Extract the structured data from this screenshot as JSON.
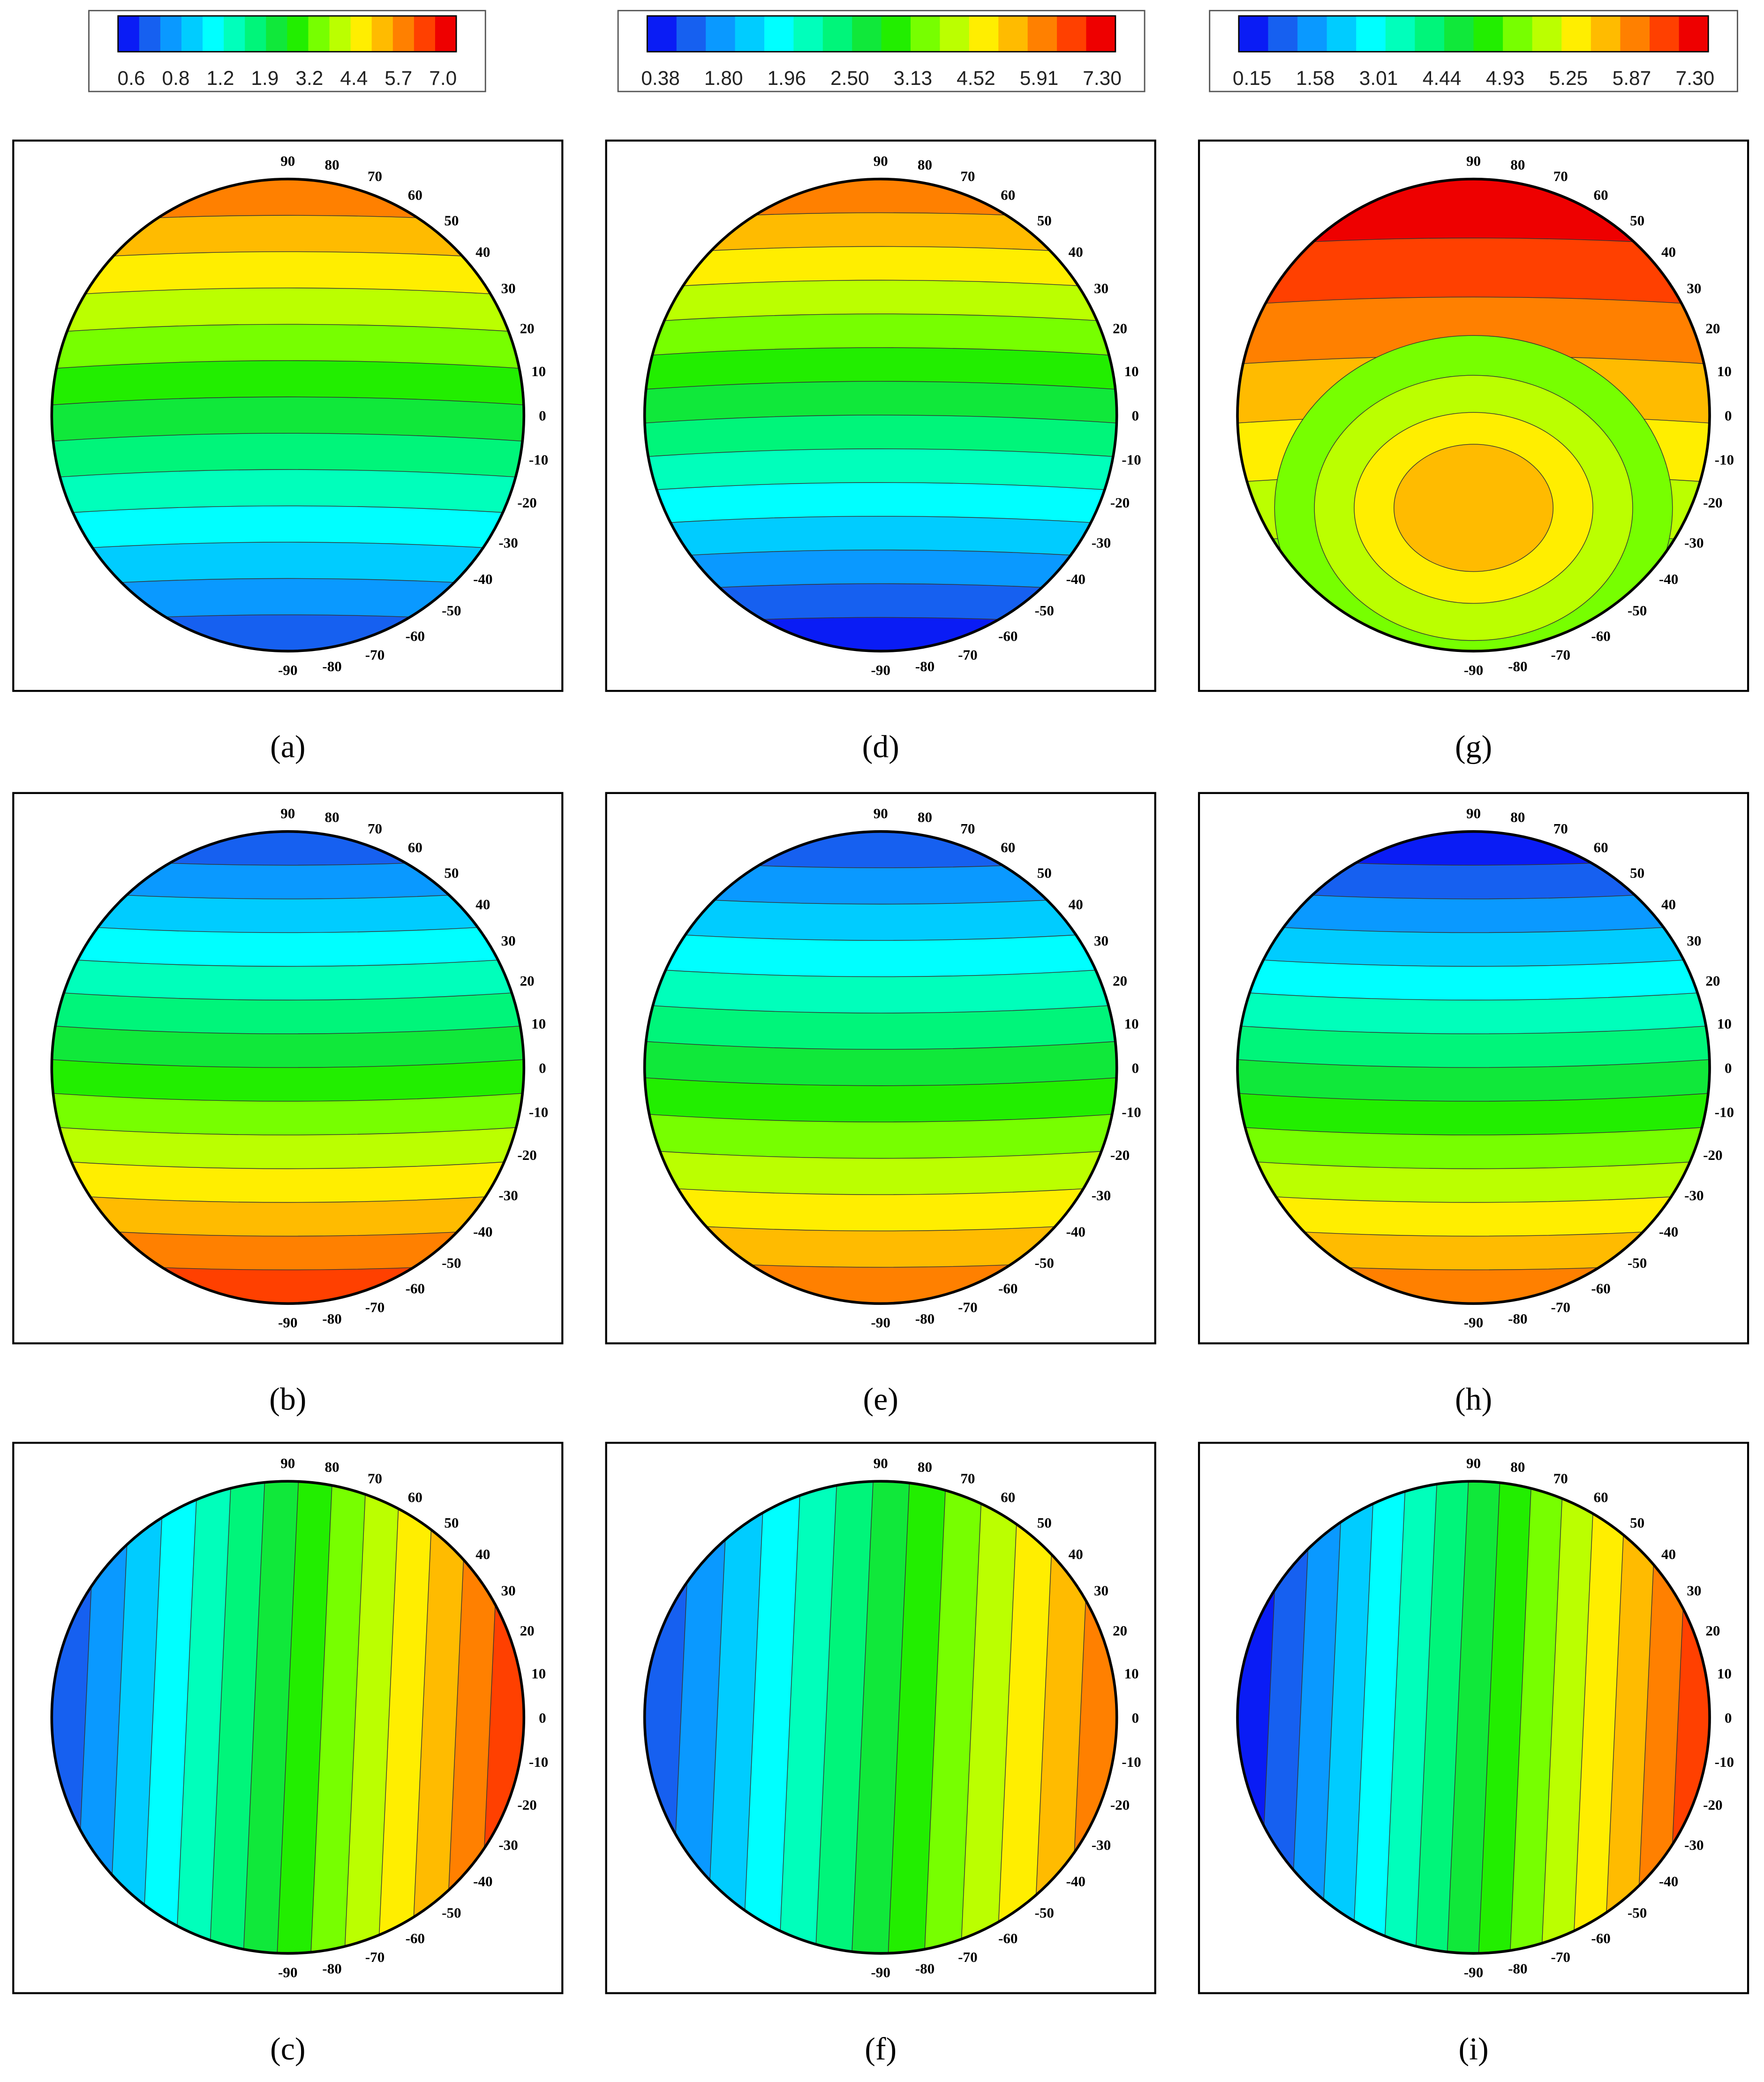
{
  "colorbars": [
    {
      "labels": [
        "0.6",
        "0.8",
        "1.2",
        "1.9",
        "3.2",
        "4.4",
        "5.7",
        "7.0"
      ]
    },
    {
      "labels": [
        "0.38",
        "1.80",
        "1.96",
        "2.50",
        "3.13",
        "4.52",
        "5.91",
        "7.30"
      ]
    },
    {
      "labels": [
        "0.15",
        "1.58",
        "3.01",
        "4.44",
        "4.93",
        "5.25",
        "5.87",
        "7.30"
      ]
    }
  ],
  "colors": [
    "#0a1cf5",
    "#1660f0",
    "#0a99ff",
    "#00ccff",
    "#00ffff",
    "#00ffbb",
    "#00f57a",
    "#10e83a",
    "#22ee00",
    "#77ff00",
    "#bbff00",
    "#ffee00",
    "#ffbb00",
    "#ff8000",
    "#ff4000",
    "#ee0000"
  ],
  "angle_labels": [
    "90",
    "80",
    "70",
    "60",
    "50",
    "40",
    "30",
    "20",
    "10",
    "0",
    "-10",
    "-20",
    "-30",
    "-40",
    "-50",
    "-60",
    "-70",
    "-80",
    "-90"
  ],
  "panels": [
    {
      "label": "(a)"
    },
    {
      "label": "(b)"
    },
    {
      "label": "(c)"
    },
    {
      "label": "(d)"
    },
    {
      "label": "(e)"
    },
    {
      "label": "(f)"
    },
    {
      "label": "(g)"
    },
    {
      "label": "(h)"
    },
    {
      "label": "(i)"
    }
  ]
}
